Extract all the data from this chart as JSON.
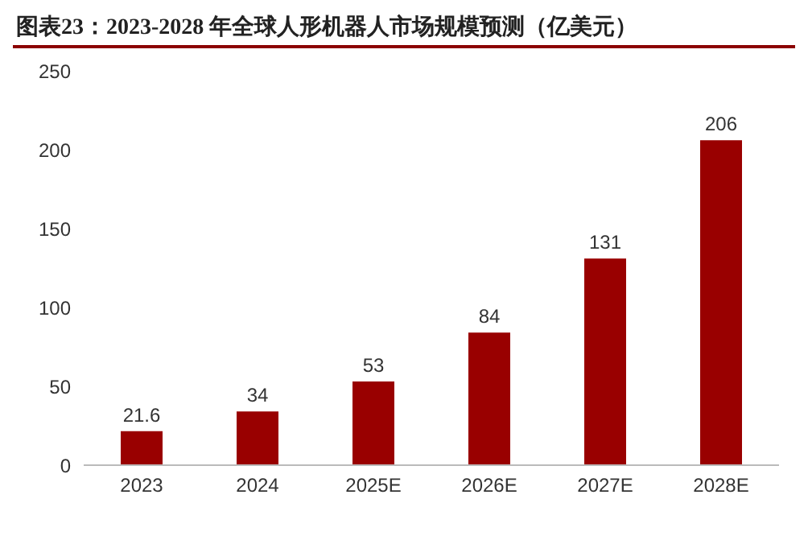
{
  "chart_data": {
    "type": "bar",
    "title": "图表23：2023-2028 年全球人形机器人市场规模预测（亿美元）",
    "categories": [
      "2023",
      "2024",
      "2025E",
      "2026E",
      "2027E",
      "2028E"
    ],
    "values": [
      21.6,
      34,
      53,
      84,
      131,
      206
    ],
    "color": "#990000",
    "ylim": [
      0,
      250
    ],
    "yticks": [
      0,
      50,
      100,
      150,
      200,
      250
    ],
    "grid": false,
    "data_labels": true
  }
}
